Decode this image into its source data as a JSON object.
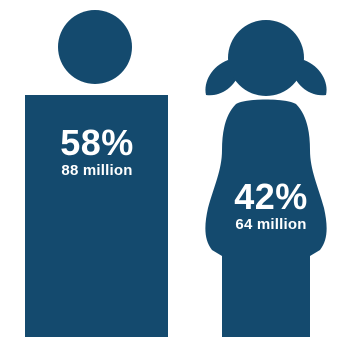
{
  "colors": {
    "figure": "#144a6e",
    "text": "#ffffff",
    "background": "#ffffff"
  },
  "chart_data": {
    "type": "pictograph",
    "categories": [
      "boy-figure",
      "girl-figure"
    ],
    "items": [
      {
        "icon": "boy-figure-icon",
        "percent_label": "58%",
        "count_label": "88 million",
        "percent": 58,
        "count_millions": 88
      },
      {
        "icon": "girl-figure-icon",
        "percent_label": "42%",
        "count_label": "64 million",
        "percent": 42,
        "count_millions": 64
      }
    ]
  }
}
